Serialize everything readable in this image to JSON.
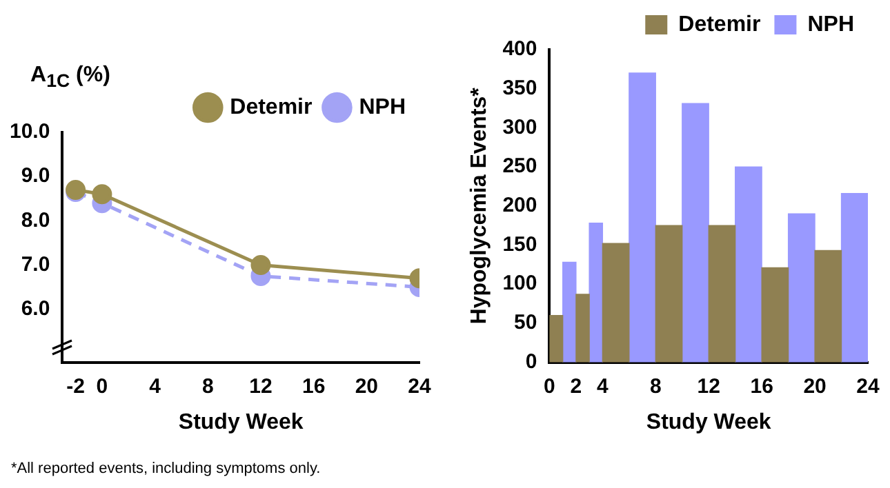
{
  "chart_data": [
    {
      "type": "line",
      "ylabel": "A$_{1C}$ (%)",
      "xlabel": "Study Week",
      "x": [
        -2,
        0,
        12,
        24
      ],
      "series": [
        {
          "name": "Detemir",
          "color": "#9c8e50",
          "values": [
            8.7,
            8.6,
            7.0,
            6.7
          ],
          "line_style": "solid"
        },
        {
          "name": "NPH",
          "color": "#a3a3f5",
          "values": [
            8.65,
            8.4,
            6.75,
            6.5
          ],
          "line_style": "dashed"
        }
      ],
      "xlim": [
        -3,
        24
      ],
      "xticks": [
        -2,
        0,
        4,
        8,
        12,
        16,
        20,
        24
      ],
      "ylim": [
        4.8,
        10
      ],
      "yticks": [
        {
          "value": 6,
          "label": "6.0"
        },
        {
          "value": 7,
          "label": "7.0"
        },
        {
          "value": 8,
          "label": "8.0"
        },
        {
          "value": 9,
          "label": "9.0"
        },
        {
          "value": 10,
          "label": "10.0"
        }
      ],
      "grid": false,
      "legend": "top right",
      "marker": "circle"
    },
    {
      "type": "histogram",
      "xlabel": "Study Week",
      "ylabel": "Hypoglycemia Events*",
      "bins": [
        0,
        1,
        2,
        3,
        4,
        6,
        8,
        10,
        12,
        14,
        16,
        18,
        20,
        22,
        24
      ],
      "series": [
        {
          "name": "Detemir",
          "color": "#8f8052",
          "values": [
            60,
            null,
            87,
            null,
            152,
            null,
            175,
            null,
            175,
            null,
            121,
            null,
            143,
            null
          ]
        },
        {
          "name": "NPH",
          "color": "#9999ff",
          "values": [
            null,
            128,
            null,
            178,
            null,
            370,
            null,
            331,
            null,
            250,
            null,
            190,
            null,
            216
          ]
        }
      ],
      "xlim": [
        0,
        24
      ],
      "xticks": [
        0,
        2,
        4,
        8,
        12,
        16,
        20,
        24
      ],
      "ylim": [
        0,
        400
      ],
      "yticks": [
        0,
        50,
        100,
        150,
        200,
        250,
        300,
        350,
        400
      ],
      "grid": false,
      "legend": "top right",
      "annotations": [
        "*All reported events, including symptoms only."
      ]
    }
  ]
}
